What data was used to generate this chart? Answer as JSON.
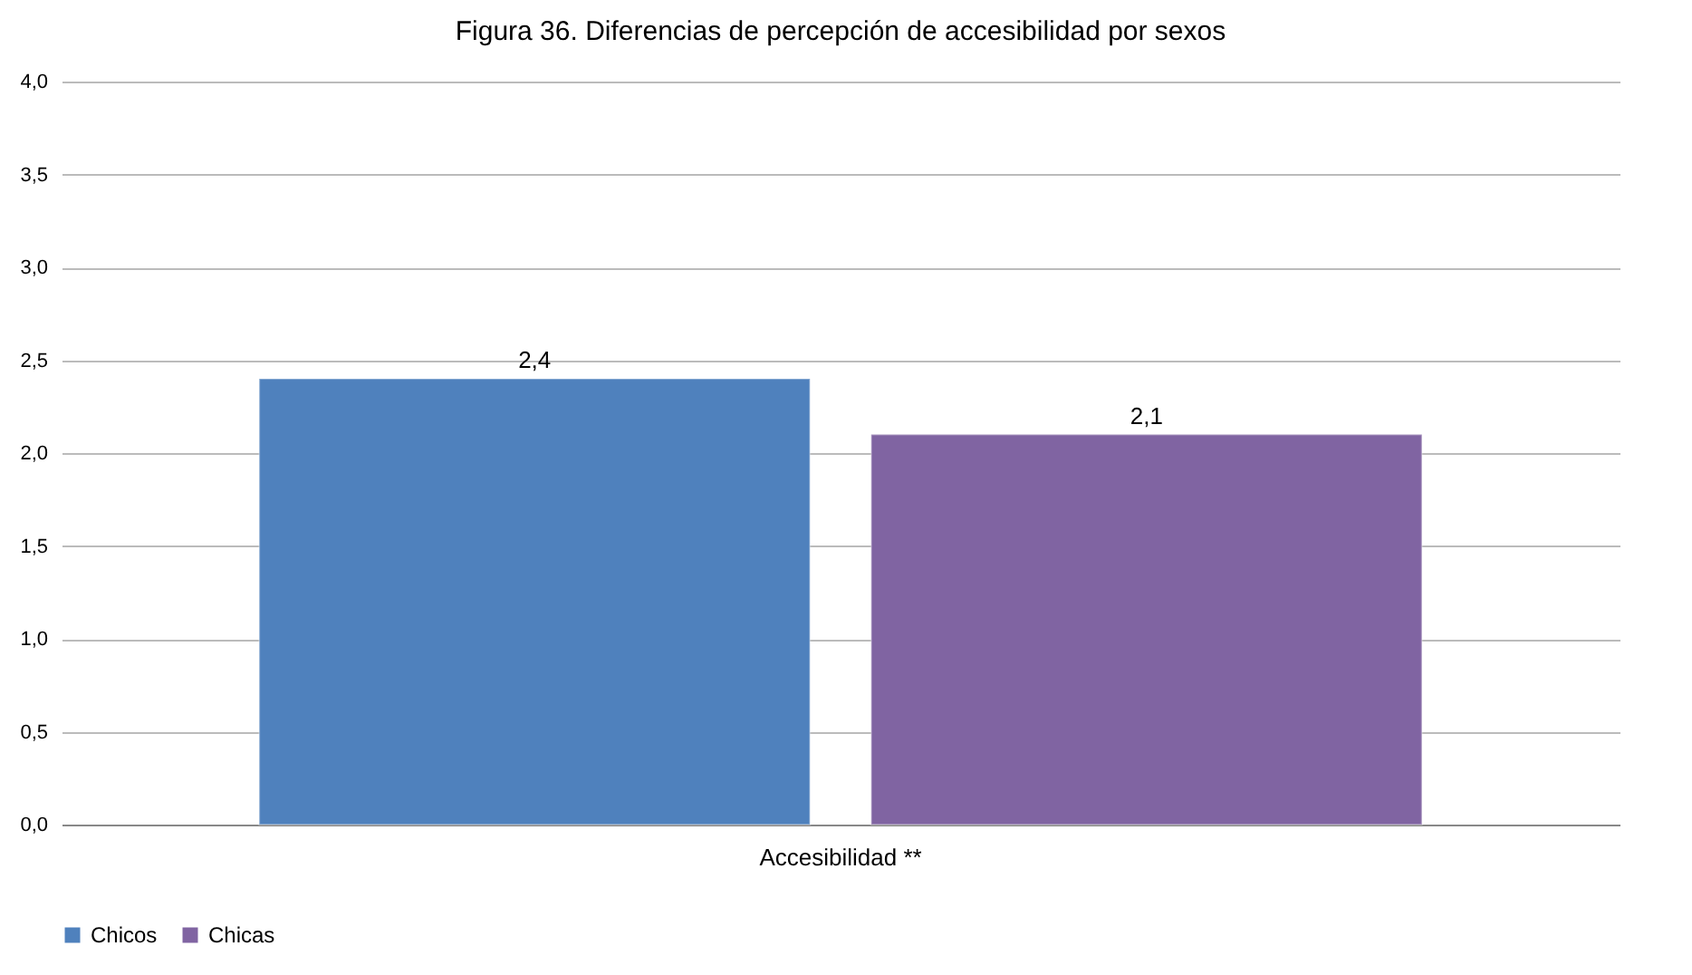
{
  "chart_data": {
    "type": "bar",
    "title": "Figura 36. Diferencias de percepción de accesibilidad por sexos",
    "categories": [
      "Accesibilidad **"
    ],
    "series": [
      {
        "name": "Chicos",
        "color": "#4f81bd",
        "values": [
          2.4
        ],
        "value_labels": [
          "2,4"
        ]
      },
      {
        "name": "Chicas",
        "color": "#8064a2",
        "values": [
          2.1
        ],
        "value_labels": [
          "2,1"
        ]
      }
    ],
    "ylim": [
      0,
      4
    ],
    "yticks": [
      {
        "value": 0,
        "label": "0,0"
      },
      {
        "value": 0.5,
        "label": "0,5"
      },
      {
        "value": 1,
        "label": "1,0"
      },
      {
        "value": 1.5,
        "label": "1,5"
      },
      {
        "value": 2,
        "label": "2,0"
      },
      {
        "value": 2.5,
        "label": "2,5"
      },
      {
        "value": 3,
        "label": "3,0"
      },
      {
        "value": 3.5,
        "label": "3,5"
      },
      {
        "value": 4,
        "label": "4,0"
      }
    ],
    "grid": "y",
    "legend": "bottom"
  }
}
